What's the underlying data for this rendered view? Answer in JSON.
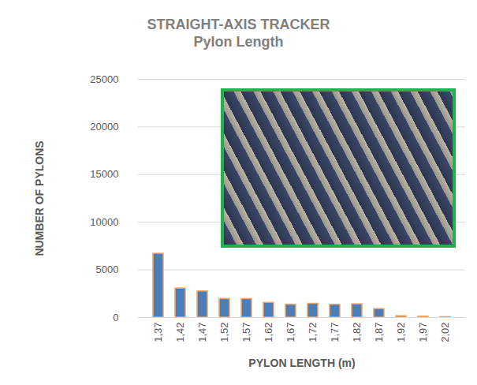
{
  "chart_data": {
    "type": "bar",
    "title": "STRAIGHT-AXIS TRACKER",
    "subtitle": "Pylon Length",
    "x_label": "PYLON LENGTH (m)",
    "y_label": "NUMBER OF PYLONS",
    "categories": [
      "1,37",
      "1,42",
      "1,47",
      "1,52",
      "1,57",
      "1,62",
      "1,67",
      "1,72",
      "1,77",
      "1,82",
      "1,87",
      "1,92",
      "1,97",
      "2,02"
    ],
    "values": [
      6700,
      3050,
      2750,
      1950,
      1950,
      1550,
      1350,
      1450,
      1350,
      1400,
      900,
      150,
      100,
      50
    ],
    "color": "#4a7ebb",
    "ylim": [
      0,
      25000
    ],
    "yticks": [
      0,
      5000,
      10000,
      15000,
      20000,
      25000
    ],
    "grid": true
  }
}
